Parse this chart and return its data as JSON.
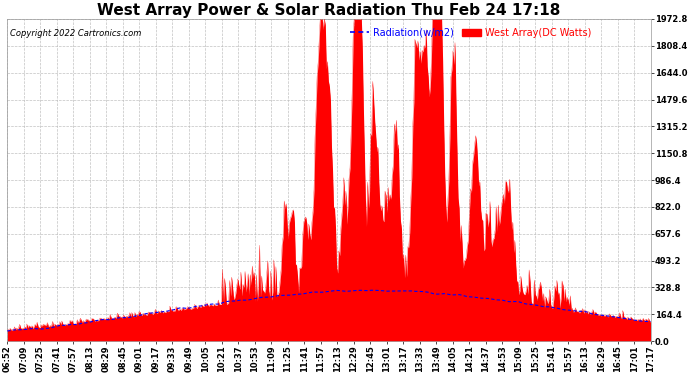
{
  "title": "West Array Power & Solar Radiation Thu Feb 24 17:18",
  "copyright": "Copyright 2022 Cartronics.com",
  "legend_radiation": "Radiation(w/m2)",
  "legend_west": "West Array(DC Watts)",
  "ymax": 1972.8,
  "yticks": [
    0.0,
    164.4,
    328.8,
    493.2,
    657.6,
    822.0,
    986.4,
    1150.8,
    1315.2,
    1479.6,
    1644.0,
    1808.4,
    1972.8
  ],
  "radiation_color": "#0000ff",
  "west_color": "#ff0000",
  "background_color": "#ffffff",
  "grid_color": "#bbbbbb",
  "title_fontsize": 11,
  "copyright_fontsize": 6,
  "tick_fontsize": 6,
  "legend_fontsize": 7,
  "x_tick_labels": [
    "06:52",
    "07:09",
    "07:25",
    "07:41",
    "07:57",
    "08:13",
    "08:29",
    "08:45",
    "09:01",
    "09:17",
    "09:33",
    "09:49",
    "10:05",
    "10:21",
    "10:37",
    "10:53",
    "11:09",
    "11:25",
    "11:41",
    "11:57",
    "12:13",
    "12:29",
    "12:45",
    "13:01",
    "13:17",
    "13:33",
    "13:49",
    "14:05",
    "14:21",
    "14:37",
    "14:53",
    "15:09",
    "15:25",
    "15:41",
    "15:57",
    "16:13",
    "16:29",
    "16:45",
    "17:01",
    "17:17"
  ]
}
